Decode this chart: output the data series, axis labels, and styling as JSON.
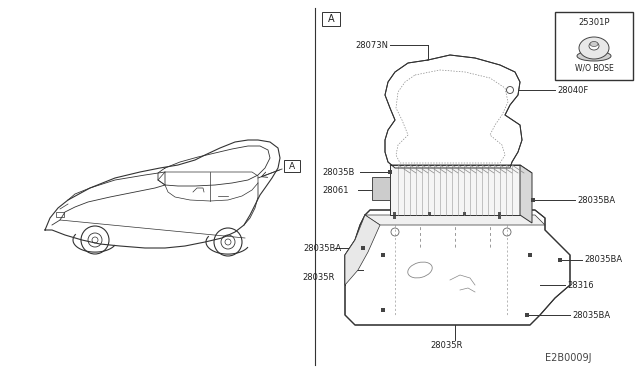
{
  "bg_color": "#ffffff",
  "line_color": "#333333",
  "diagram_code": "E2B0009J",
  "inset_label": "25301P",
  "inset_sublabel": "W/O BOSE"
}
